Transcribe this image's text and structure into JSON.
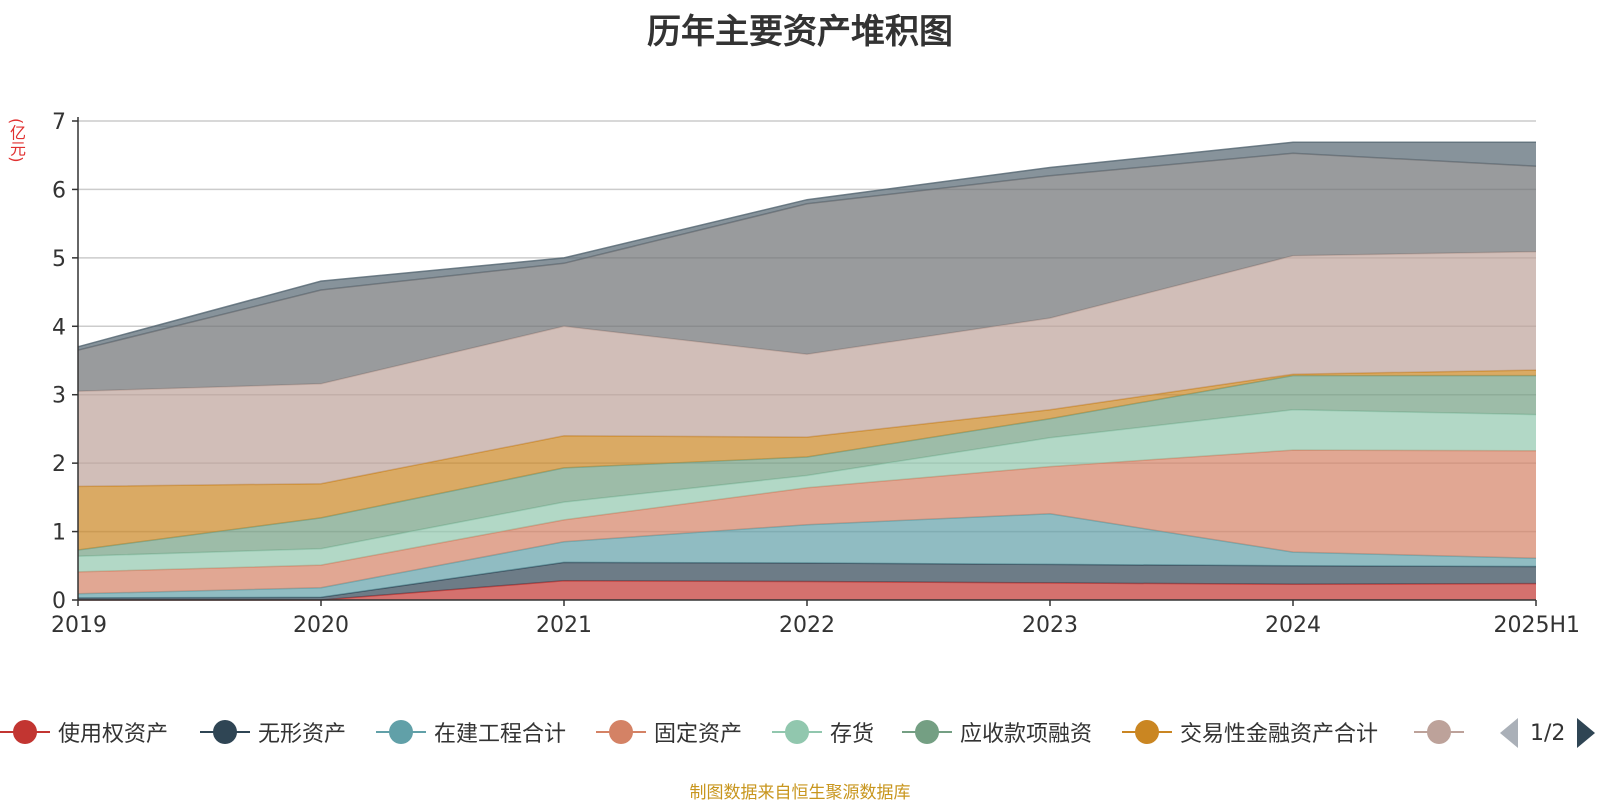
{
  "title": "历年主要资产堆积图",
  "unit_label": "(亿元)",
  "source_text": "制图数据来自恒生聚源数据库",
  "legend": {
    "items": [
      {
        "label": "使用权资产",
        "color": "#c23531"
      },
      {
        "label": "无形资产",
        "color": "#2f4554"
      },
      {
        "label": "在建工程合计",
        "color": "#61a0a8"
      },
      {
        "label": "固定资产",
        "color": "#d48265"
      },
      {
        "label": "存货",
        "color": "#91c7ae"
      },
      {
        "label": "应收款项融资",
        "color": "#749f83"
      },
      {
        "label": "交易性金融资产合计",
        "color": "#ca8622"
      },
      {
        "label": "",
        "color": "#bda29a"
      }
    ],
    "page_indicator": "1/2"
  },
  "chart_data": {
    "type": "area",
    "stacked": true,
    "title": "历年主要资产堆积图",
    "ylabel": "(亿元)",
    "x": [
      "2019",
      "2020",
      "2021",
      "2022",
      "2023",
      "2024",
      "2025H1"
    ],
    "ylim": [
      0,
      7
    ],
    "yticks": [
      0,
      1,
      2,
      3,
      4,
      5,
      6,
      7
    ],
    "grid": true,
    "legend_position": "bottom",
    "series": [
      {
        "name": "使用权资产",
        "color": "#c23531",
        "values": [
          0.0,
          0.0,
          0.28,
          0.27,
          0.25,
          0.23,
          0.24
        ]
      },
      {
        "name": "无形资产",
        "color": "#2f4554",
        "values": [
          0.03,
          0.04,
          0.27,
          0.27,
          0.27,
          0.27,
          0.25
        ]
      },
      {
        "name": "在建工程合计",
        "color": "#61a0a8",
        "values": [
          0.06,
          0.14,
          0.3,
          0.56,
          0.74,
          0.2,
          0.12
        ]
      },
      {
        "name": "固定资产",
        "color": "#d48265",
        "values": [
          0.32,
          0.33,
          0.32,
          0.54,
          0.69,
          1.49,
          1.57
        ]
      },
      {
        "name": "存货",
        "color": "#91c7ae",
        "values": [
          0.23,
          0.24,
          0.26,
          0.18,
          0.42,
          0.59,
          0.53
        ]
      },
      {
        "name": "应收款项融资",
        "color": "#749f83",
        "values": [
          0.09,
          0.45,
          0.5,
          0.27,
          0.28,
          0.5,
          0.57
        ]
      },
      {
        "name": "交易性金融资产合计",
        "color": "#ca8622",
        "values": [
          0.93,
          0.5,
          0.47,
          0.29,
          0.13,
          0.02,
          0.08
        ]
      },
      {
        "name": "",
        "color": "#bda29a",
        "values": [
          1.39,
          1.46,
          1.6,
          1.21,
          1.34,
          1.73,
          1.73
        ]
      },
      {
        "name": "",
        "color": "#6e7074",
        "values": [
          0.6,
          1.37,
          0.92,
          2.2,
          2.08,
          1.5,
          1.25
        ]
      },
      {
        "name": "",
        "color": "#546570",
        "values": [
          0.05,
          0.13,
          0.08,
          0.06,
          0.12,
          0.16,
          0.35
        ]
      }
    ]
  }
}
